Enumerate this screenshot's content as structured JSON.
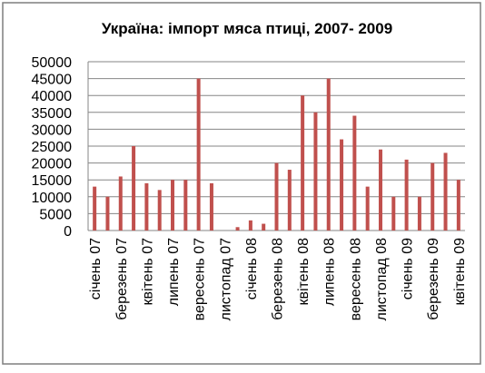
{
  "chart_data": {
    "type": "bar",
    "title": "Україна: імпорт мяса птиці, 2007- 2009",
    "categories": [
      "січень 07",
      null,
      "березень 07",
      null,
      "квітень 07",
      null,
      "липень 07",
      null,
      "вересень 07",
      null,
      "листопад 07",
      null,
      "січень 08",
      null,
      "березень 08",
      null,
      "квітень 08",
      null,
      "липень 08",
      null,
      "вересень 08",
      null,
      "листопад 08",
      null,
      "січень 09",
      null,
      "березень 09",
      null,
      "квітень 09"
    ],
    "values": [
      13000,
      10000,
      16000,
      25000,
      14000,
      12000,
      15000,
      15000,
      45000,
      14000,
      0,
      1000,
      3000,
      2000,
      20000,
      18000,
      40000,
      35000,
      45000,
      27000,
      34000,
      13000,
      24000,
      10000,
      21000,
      10000,
      20000,
      23000,
      15000
    ],
    "color": "#c0504d",
    "ylim": [
      0,
      50000
    ],
    "yticks": [
      0,
      5000,
      10000,
      15000,
      20000,
      25000,
      30000,
      35000,
      40000,
      45000,
      50000
    ],
    "grid": true
  }
}
